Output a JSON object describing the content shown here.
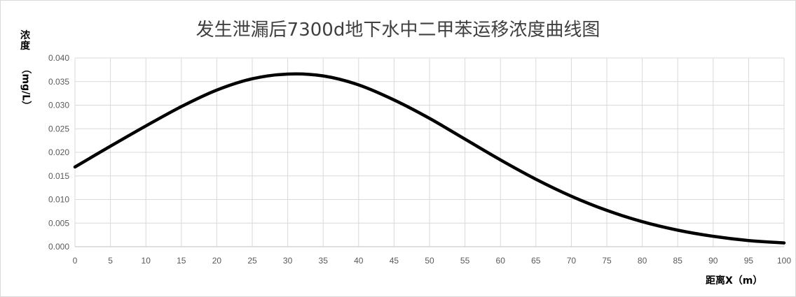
{
  "chart_data": {
    "type": "line",
    "title": "发生泄漏后7300d地下水中二甲苯运移浓度曲线图",
    "ylabel_top": "浓度",
    "ylabel_rot": "（mg/L）",
    "xlabel": "距离X（m）",
    "xlim": [
      0,
      100
    ],
    "ylim": [
      0,
      0.04
    ],
    "x_ticks": [
      "0",
      "5",
      "10",
      "15",
      "20",
      "25",
      "30",
      "35",
      "40",
      "45",
      "50",
      "55",
      "60",
      "65",
      "70",
      "75",
      "80",
      "85",
      "90",
      "95",
      "100"
    ],
    "y_ticks": [
      "0.000",
      "0.005",
      "0.010",
      "0.015",
      "0.020",
      "0.025",
      "0.030",
      "0.035",
      "0.040"
    ],
    "grid": true,
    "legend": "none",
    "series": [
      {
        "color": "#000000",
        "x": [
          0,
          5,
          10,
          15,
          20,
          25,
          30,
          35,
          40,
          45,
          50,
          55,
          60,
          65,
          70,
          75,
          80,
          85,
          90,
          95,
          100
        ],
        "values": [
          0.0169,
          0.0213,
          0.0256,
          0.0297,
          0.0332,
          0.0356,
          0.0366,
          0.0362,
          0.0343,
          0.0311,
          0.0272,
          0.0228,
          0.0184,
          0.0143,
          0.0107,
          0.0077,
          0.0053,
          0.0035,
          0.0022,
          0.0013,
          0.0008
        ]
      }
    ]
  }
}
